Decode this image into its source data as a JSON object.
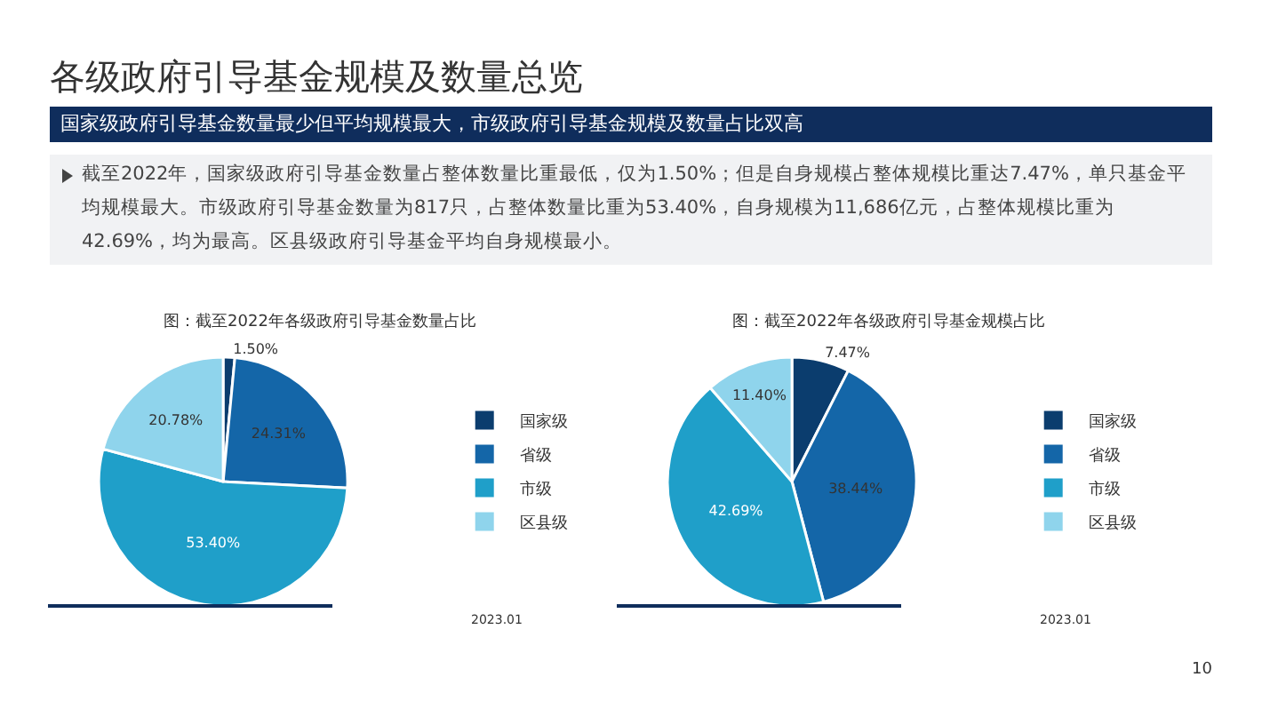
{
  "chart_data": [
    {
      "type": "other",
      "title": "各级政府引导基金规模及数量总览",
      "subtitle": "国家级政府引导基金数量最少但平均规模最大，市级政府引导基金规模及数量占比双高",
      "annotations": [
        "截至2022年，国家级政府引导基金数量占整体数量比重最低，仅为1.50%；但是自身规模占整体规模比重达7.47%，单只基金平均规模最大。市级政府引导基金数量为817只，占整体数量比重为53.40%，自身规模为11,686亿元，占整体规模比重为42.69%，均为最高。区县级政府引导基金平均自身规模最小。",
        "10"
      ]
    },
    {
      "type": "pie",
      "title": "图：截至2022年各级政府引导基金数量占比",
      "categories": [
        "国家级",
        "省级",
        "市级",
        "区县级"
      ],
      "values": [
        1.5,
        24.31,
        53.4,
        20.78
      ],
      "colors": [
        "#0b3d6e",
        "#1466a8",
        "#1f9fc9",
        "#8fd4ec"
      ],
      "value_labels": [
        "1.50%",
        "24.31%",
        "53.40%",
        "20.78%"
      ],
      "legend": "right",
      "annotations": [
        "2023.01"
      ]
    },
    {
      "type": "pie",
      "title": "图：截至2022年各级政府引导基金规模占比",
      "categories": [
        "国家级",
        "省级",
        "市级",
        "区县级"
      ],
      "values": [
        7.47,
        38.44,
        42.69,
        11.4
      ],
      "colors": [
        "#0b3d6e",
        "#1466a8",
        "#1f9fc9",
        "#8fd4ec"
      ],
      "value_labels": [
        "7.47%",
        "38.44%",
        "42.69%",
        "11.40%"
      ],
      "legend": "right",
      "annotations": [
        "2023.01"
      ]
    }
  ]
}
